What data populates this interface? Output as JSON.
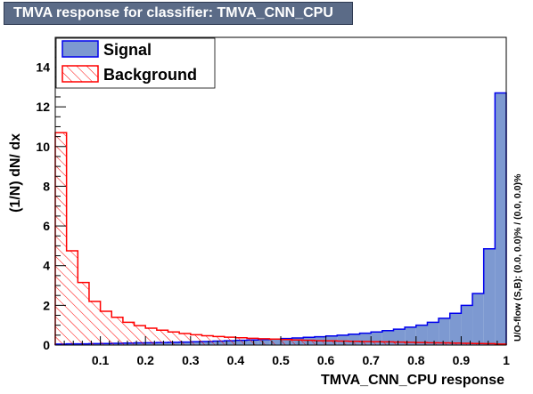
{
  "window_title": "TMVA response for classifier: TMVA_CNN_CPU",
  "colors": {
    "signal_fill": "#7d99d1",
    "signal_line": "#0000ee",
    "background_hatch": "#ff0000",
    "title_bg": "#5b6b87"
  },
  "chart_data": {
    "type": "histogram",
    "title": "TMVA response for classifier: TMVA_CNN_CPU",
    "xlabel": "TMVA_CNN_CPU response",
    "ylabel": "(1/N) dN/ dx",
    "side_label": "U/O-flow (S,B): (0.0, 0.0)% / (0.0, 0.0)%",
    "xlim": [
      0.0,
      1.0
    ],
    "ylim": [
      0,
      15.5
    ],
    "x_ticks": [
      "0.1",
      "0.2",
      "0.3",
      "0.4",
      "0.5",
      "0.6",
      "0.7",
      "0.8",
      "0.9",
      "1"
    ],
    "x_tick_values": [
      0.1,
      0.2,
      0.3,
      0.4,
      0.5,
      0.6,
      0.7,
      0.8,
      0.9,
      1.0
    ],
    "y_ticks": [
      "0",
      "2",
      "4",
      "6",
      "8",
      "10",
      "12",
      "14"
    ],
    "y_tick_values": [
      0,
      2,
      4,
      6,
      8,
      10,
      12,
      14
    ],
    "bin_edges_range": [
      0.0,
      1.0
    ],
    "n_bins": 40,
    "legend_position": "top-left",
    "series": [
      {
        "name": "Signal",
        "style": "filled",
        "values": [
          0.05,
          0.06,
          0.06,
          0.07,
          0.08,
          0.09,
          0.1,
          0.11,
          0.12,
          0.13,
          0.14,
          0.15,
          0.17,
          0.18,
          0.2,
          0.22,
          0.24,
          0.26,
          0.28,
          0.3,
          0.33,
          0.36,
          0.39,
          0.42,
          0.46,
          0.5,
          0.55,
          0.6,
          0.66,
          0.73,
          0.8,
          0.9,
          1.0,
          1.15,
          1.35,
          1.6,
          2.0,
          2.6,
          4.85,
          12.7
        ]
      },
      {
        "name": "Background",
        "style": "hatched",
        "values": [
          10.7,
          4.75,
          3.15,
          2.2,
          1.7,
          1.4,
          1.15,
          0.98,
          0.85,
          0.75,
          0.66,
          0.58,
          0.52,
          0.47,
          0.43,
          0.4,
          0.37,
          0.34,
          0.32,
          0.3,
          0.28,
          0.26,
          0.24,
          0.22,
          0.21,
          0.2,
          0.19,
          0.18,
          0.17,
          0.16,
          0.15,
          0.14,
          0.13,
          0.12,
          0.11,
          0.1,
          0.09,
          0.08,
          0.07,
          0.05
        ]
      }
    ]
  }
}
